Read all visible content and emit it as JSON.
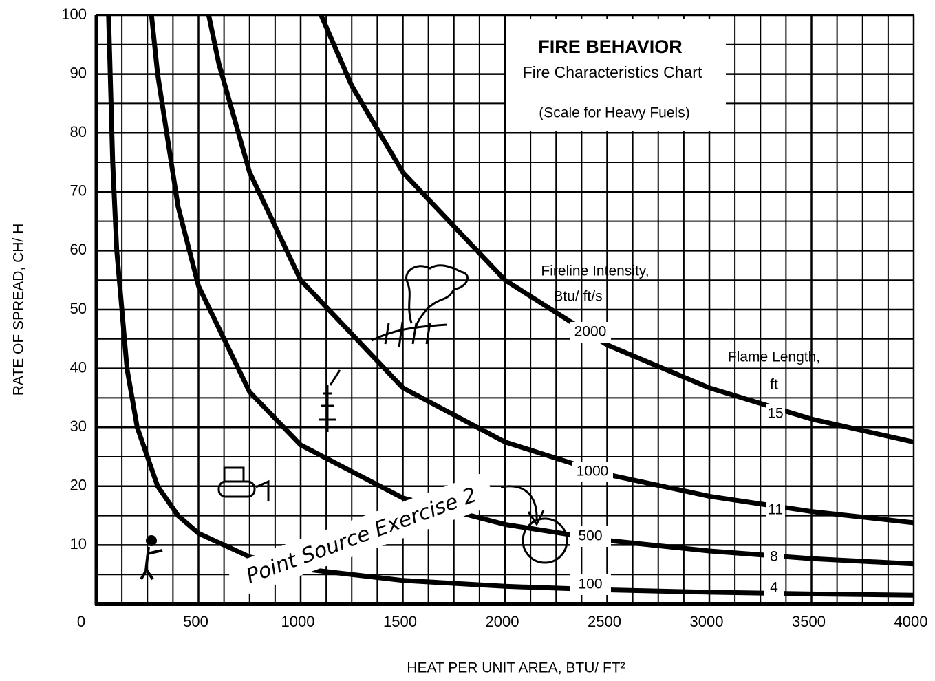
{
  "chart_data": {
    "type": "line",
    "title": "FIRE BEHAVIOR",
    "subtitle": "Fire Characteristics Chart",
    "note": "(Scale for Heavy Fuels)",
    "xlabel": "HEAT PER UNIT AREA, BTU/ FT²",
    "ylabel": "RATE OF SPREAD, CH/ H",
    "intensity_heading": [
      "Fireline Intensity,",
      "Btu/ ft/s"
    ],
    "flame_heading": [
      "Flame Length,",
      "ft"
    ],
    "annotation": "Point Source Exercise 2",
    "xlim": [
      0,
      4000
    ],
    "ylim": [
      0,
      100
    ],
    "xticks": [
      500,
      1000,
      1500,
      2000,
      2500,
      3000,
      3500,
      4000
    ],
    "yticks": [
      0,
      10,
      20,
      30,
      40,
      50,
      60,
      70,
      80,
      90,
      100
    ],
    "grid": true,
    "minor_grid": {
      "x": 4,
      "y": 2
    },
    "series": [
      {
        "name": "100",
        "flame_length": "4",
        "color": "#000000",
        "x": [
          60,
          80,
          100,
          150,
          200,
          300,
          400,
          500,
          750,
          1000,
          1500,
          2000,
          2500,
          3000,
          3500,
          4000
        ],
        "values": [
          100,
          75,
          60,
          40,
          30,
          20,
          15,
          12,
          8,
          6,
          4,
          3,
          2.4,
          2,
          1.7,
          1.5
        ]
      },
      {
        "name": "500",
        "flame_length": "8",
        "color": "#000000",
        "x": [
          270,
          300,
          400,
          500,
          750,
          1000,
          1500,
          2000,
          2500,
          3000,
          3500,
          4000
        ],
        "values": [
          100,
          90,
          67.5,
          54,
          36,
          27,
          18,
          13.5,
          10.8,
          9,
          7.7,
          6.8
        ]
      },
      {
        "name": "1000",
        "flame_length": "11",
        "color": "#000000",
        "x": [
          550,
          600,
          750,
          1000,
          1500,
          2000,
          2500,
          3000,
          3500,
          4000
        ],
        "values": [
          100,
          91.7,
          73.3,
          55,
          36.7,
          27.5,
          22,
          18.3,
          15.7,
          13.8
        ]
      },
      {
        "name": "2000",
        "flame_length": "15",
        "color": "#000000",
        "x": [
          1100,
          1250,
          1500,
          2000,
          2500,
          3000,
          3500,
          4000
        ],
        "values": [
          100,
          88,
          73.3,
          55,
          44,
          36.7,
          31.4,
          27.5
        ]
      }
    ]
  }
}
